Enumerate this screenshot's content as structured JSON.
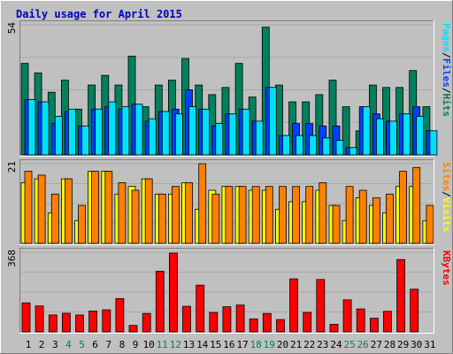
{
  "chart_data": {
    "type": "bar",
    "title": "Daily usage for April 2015",
    "categories": [
      "1",
      "2",
      "3",
      "4",
      "5",
      "6",
      "7",
      "8",
      "9",
      "10",
      "11",
      "12",
      "13",
      "14",
      "15",
      "16",
      "17",
      "18",
      "19",
      "20",
      "21",
      "22",
      "23",
      "24",
      "25",
      "26",
      "27",
      "28",
      "29",
      "30",
      "31"
    ],
    "weekend_days": [
      4,
      5,
      11,
      12,
      18,
      19,
      25,
      26
    ],
    "colors": {
      "title": "#0000c0",
      "hits": "#00805c",
      "files": "#0040ff",
      "pages": "#00e0ff",
      "visits": "#ffff00",
      "sites": "#ff8000",
      "kbytes": "#ff0000",
      "weekend_label": "#00805c"
    },
    "panels": [
      {
        "id": "top",
        "ymax": 54,
        "ymax_label": "54",
        "legend": [
          {
            "text": "Hits",
            "color": "#00805c"
          },
          {
            "text": "Files",
            "color": "#0040ff"
          },
          {
            "text": "Pages",
            "color": "#00e0ff"
          }
        ],
        "series": [
          {
            "name": "Hits",
            "color": "#00805c",
            "values": [
              38,
              34,
              26,
              31,
              19,
              29,
              33,
              29,
              41,
              20,
              29,
              31,
              40,
              29,
              25,
              28,
              38,
              24,
              53,
              29,
              22,
              22,
              25,
              31,
              20,
              10,
              29,
              28,
              28,
              35,
              20
            ]
          },
          {
            "name": "Files",
            "color": "#0040ff",
            "values": [
              23,
              22,
              13,
              18,
              12,
              19,
              20,
              19,
              21,
              14,
              18,
              19,
              27,
              19,
              12,
              17,
              19,
              14,
              28,
              8,
              13,
              13,
              12,
              12,
              3,
              20,
              17,
              14,
              17,
              20,
              10
            ]
          },
          {
            "name": "Pages",
            "color": "#00e0ff",
            "values": [
              23,
              22,
              16,
              19,
              12,
              19,
              22,
              20,
              21,
              15,
              18,
              17,
              20,
              19,
              13,
              17,
              19,
              14,
              28,
              8,
              8,
              8,
              7,
              6,
              3,
              20,
              15,
              14,
              17,
              16,
              10
            ]
          }
        ]
      },
      {
        "id": "middle",
        "ymax": 21,
        "ymax_label": "21",
        "legend": [
          {
            "text": "Visits",
            "color": "#ffff00"
          },
          {
            "text": "Sites",
            "color": "#ff8000"
          }
        ],
        "series": [
          {
            "name": "Visits",
            "color": "#ffff00",
            "values": [
              16,
              17,
              8,
              17,
              6,
              19,
              19,
              13,
              15,
              17,
              13,
              13,
              16,
              9,
              14,
              15,
              15,
              14,
              14,
              9,
              11,
              11,
              14,
              10,
              6,
              12,
              10,
              8,
              15,
              15,
              6
            ]
          },
          {
            "name": "Sites",
            "color": "#ff8000",
            "values": [
              19,
              18,
              13,
              17,
              10,
              19,
              19,
              16,
              14,
              17,
              13,
              15,
              16,
              21,
              13,
              15,
              15,
              15,
              15,
              15,
              15,
              15,
              16,
              10,
              15,
              14,
              12,
              13,
              19,
              20,
              10
            ]
          }
        ]
      },
      {
        "id": "bottom",
        "ymax": 368,
        "ymax_label": "368",
        "legend": [
          {
            "text": "KBytes",
            "color": "#ff0000"
          }
        ],
        "series": [
          {
            "name": "KBytes",
            "color": "#ff0000",
            "values": [
              134,
              120,
              78,
              86,
              78,
              96,
              102,
              154,
              30,
              85,
              280,
              364,
              118,
              216,
              90,
              116,
              124,
              60,
              85,
              57,
              245,
              90,
              242,
              35,
              148,
              106,
              63,
              95,
              334,
              197,
              0
            ]
          }
        ]
      }
    ]
  }
}
